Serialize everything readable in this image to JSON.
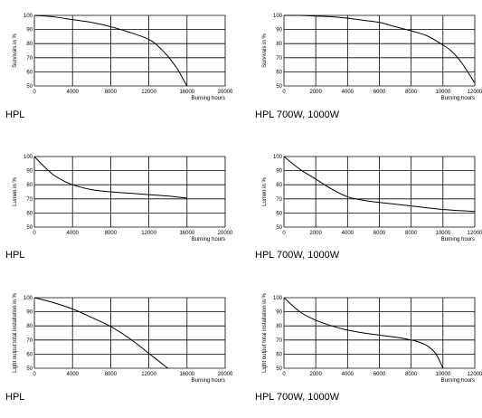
{
  "chart_data": [
    {
      "type": "line",
      "caption": "HPL",
      "ylabel": "Survivals in %",
      "xlabel": "Burning hours",
      "xlim": [
        0,
        20000
      ],
      "xticks": [
        0,
        4000,
        8000,
        12000,
        16000,
        20000
      ],
      "ylim": [
        50,
        100
      ],
      "yticks": [
        50,
        60,
        70,
        80,
        90,
        100
      ],
      "grid": true,
      "series": [
        {
          "x": [
            0,
            2000,
            4000,
            6000,
            8000,
            10000,
            12000,
            13000,
            14000,
            15000,
            15500,
            16000
          ],
          "y": [
            100,
            99,
            97,
            95,
            92,
            88,
            83,
            78,
            71,
            62,
            56,
            50
          ]
        }
      ]
    },
    {
      "type": "line",
      "caption": "HPL 700W, 1000W",
      "ylabel": "Survivals in %",
      "xlabel": "Burning hours",
      "xlim": [
        0,
        12000
      ],
      "xticks": [
        0,
        2000,
        4000,
        6000,
        8000,
        10000,
        12000
      ],
      "ylim": [
        50,
        100
      ],
      "yticks": [
        50,
        60,
        70,
        80,
        90,
        100
      ],
      "grid": true,
      "series": [
        {
          "x": [
            0,
            1000,
            2000,
            3000,
            4000,
            5000,
            6000,
            7000,
            8000,
            9000,
            10000,
            10500,
            11000,
            11500,
            12000
          ],
          "y": [
            100,
            100,
            99.5,
            99,
            98,
            96.5,
            95,
            92,
            89,
            85.5,
            79,
            75,
            69,
            61,
            52
          ]
        }
      ]
    },
    {
      "type": "line",
      "caption": "HPL",
      "ylabel": "Lumen in %",
      "xlabel": "Burning hours",
      "xlim": [
        0,
        20000
      ],
      "xticks": [
        0,
        4000,
        8000,
        12000,
        16000,
        20000
      ],
      "ylim": [
        50,
        100
      ],
      "yticks": [
        50,
        60,
        70,
        80,
        90,
        100
      ],
      "grid": true,
      "series": [
        {
          "x": [
            0,
            1000,
            2000,
            3000,
            4000,
            6000,
            8000,
            10000,
            12000,
            14000,
            16000
          ],
          "y": [
            100,
            93,
            87,
            83,
            80,
            76.5,
            75,
            74,
            73,
            72,
            70.5
          ]
        }
      ]
    },
    {
      "type": "line",
      "caption": "HPL 700W, 1000W",
      "ylabel": "Lumen in %",
      "xlabel": "Burning hours",
      "xlim": [
        0,
        12000
      ],
      "xticks": [
        0,
        2000,
        4000,
        6000,
        8000,
        10000,
        12000
      ],
      "ylim": [
        50,
        100
      ],
      "yticks": [
        50,
        60,
        70,
        80,
        90,
        100
      ],
      "grid": true,
      "series": [
        {
          "x": [
            0,
            1000,
            2000,
            3000,
            4000,
            5000,
            6000,
            8000,
            10000,
            12000
          ],
          "y": [
            100,
            91,
            84,
            77,
            71.5,
            69,
            67.5,
            65,
            62.5,
            61
          ]
        }
      ]
    },
    {
      "type": "line",
      "caption": "HPL",
      "ylabel": "Light output total installation in %",
      "xlabel": "Burning hours",
      "xlim": [
        0,
        20000
      ],
      "xticks": [
        0,
        4000,
        8000,
        12000,
        16000,
        20000
      ],
      "ylim": [
        50,
        100
      ],
      "yticks": [
        50,
        60,
        70,
        80,
        90,
        100
      ],
      "grid": true,
      "series": [
        {
          "x": [
            0,
            2000,
            4000,
            6000,
            8000,
            10000,
            12000,
            14000
          ],
          "y": [
            100,
            96.5,
            92,
            86,
            79.5,
            71,
            60.5,
            50
          ]
        }
      ]
    },
    {
      "type": "line",
      "caption": "HPL 700W, 1000W",
      "ylabel": "Light output total installation in %",
      "xlabel": "Burning hours",
      "xlim": [
        0,
        12000
      ],
      "xticks": [
        0,
        2000,
        4000,
        6000,
        8000,
        10000,
        12000
      ],
      "ylim": [
        50,
        100
      ],
      "yticks": [
        50,
        60,
        70,
        80,
        90,
        100
      ],
      "grid": true,
      "series": [
        {
          "x": [
            0,
            1000,
            2000,
            3000,
            4000,
            5000,
            6000,
            7000,
            8000,
            8500,
            9000,
            9500,
            9800,
            10000
          ],
          "y": [
            100,
            90,
            84,
            80,
            77,
            75,
            73.5,
            72,
            70,
            68.5,
            66,
            61,
            55,
            50
          ]
        }
      ]
    }
  ]
}
